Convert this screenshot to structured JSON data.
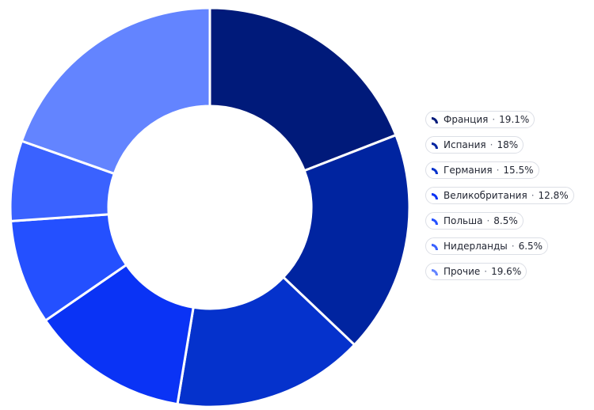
{
  "chart_data": {
    "type": "pie",
    "donut": true,
    "legend_position": "right",
    "slices": [
      {
        "label": "Франция",
        "value": 19.1,
        "value_label": "19.1%",
        "color": "#001a7a"
      },
      {
        "label": "Испания",
        "value": 18,
        "value_label": "18%",
        "color": "#0024a0"
      },
      {
        "label": "Германия",
        "value": 15.5,
        "value_label": "15.5%",
        "color": "#0532cc"
      },
      {
        "label": "Великобритания",
        "value": 12.8,
        "value_label": "12.8%",
        "color": "#0a33f5"
      },
      {
        "label": "Польша",
        "value": 8.5,
        "value_label": "8.5%",
        "color": "#2450ff"
      },
      {
        "label": "Нидерланды",
        "value": 6.5,
        "value_label": "6.5%",
        "color": "#3a62ff"
      },
      {
        "label": "Прочие",
        "value": 19.6,
        "value_label": "19.6%",
        "color": "#6384ff"
      }
    ]
  }
}
